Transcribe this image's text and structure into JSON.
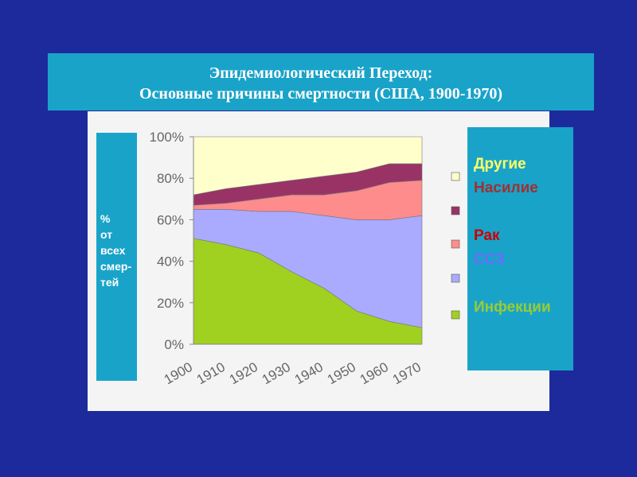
{
  "chart_data": {
    "type": "stacked_area",
    "title": [
      "Эпидемиологический Переход:",
      "Основные причины смертности (США, 1900-1970)"
    ],
    "ylabel_lines": [
      "%",
      "от",
      "всех",
      "смер-",
      "тей"
    ],
    "categories": [
      "1900",
      "1910",
      "1920",
      "1930",
      "1940",
      "1950",
      "1960",
      "1970"
    ],
    "series": [
      {
        "name": "Инфекции",
        "color": "#a0d020",
        "legend_color": "#99cc33",
        "values": [
          51,
          48,
          44,
          35,
          27,
          16,
          11,
          8
        ]
      },
      {
        "name": "ССЗ",
        "color": "#aaaaff",
        "legend_color": "#6b6bff",
        "values": [
          14,
          17,
          20,
          29,
          35,
          44,
          49,
          54
        ]
      },
      {
        "name": "Рак",
        "color": "#ff8c8c",
        "legend_color": "#cc0000",
        "values": [
          2,
          3,
          6,
          8,
          10,
          14,
          18,
          17
        ]
      },
      {
        "name": "Насилие",
        "color": "#993366",
        "legend_color": "#a03030",
        "values": [
          5,
          7,
          7,
          7,
          9,
          9,
          9,
          8
        ]
      },
      {
        "name": "Другие",
        "color": "#ffffcc",
        "legend_color": "#ffff66",
        "values": [
          28,
          25,
          23,
          21,
          19,
          17,
          13,
          13
        ]
      }
    ],
    "ylim": [
      0,
      100
    ],
    "yticks": [
      {
        "value": 0,
        "label": "0%"
      },
      {
        "value": 20,
        "label": "20%"
      },
      {
        "value": 40,
        "label": "40%"
      },
      {
        "value": 60,
        "label": "60%"
      },
      {
        "value": 80,
        "label": "80%"
      },
      {
        "value": 100,
        "label": "100%"
      }
    ]
  }
}
